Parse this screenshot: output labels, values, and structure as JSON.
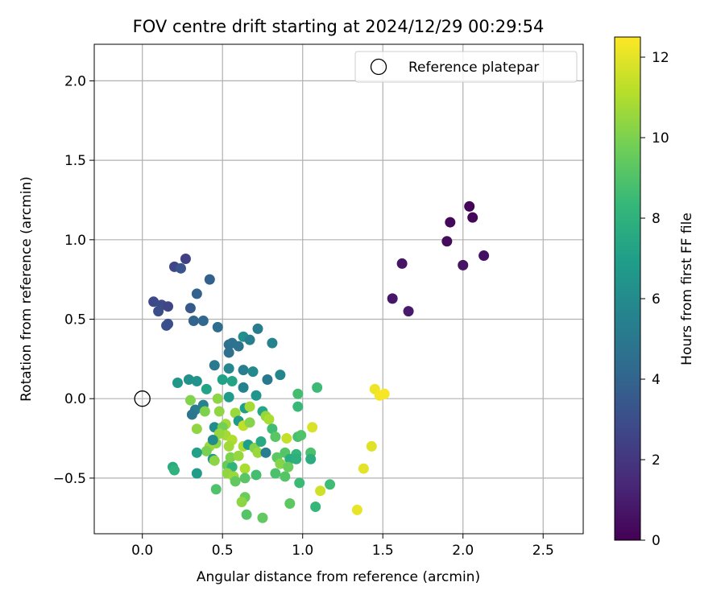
{
  "chart_data": {
    "type": "scatter",
    "title": "FOV centre drift starting at 2024/12/29 00:29:54",
    "xlabel": "Angular distance from reference (arcmin)",
    "ylabel": "Rotation from reference (arcmin)",
    "xlim": [
      -0.3,
      2.75
    ],
    "ylim": [
      -0.85,
      2.23
    ],
    "xticks": [
      0.0,
      0.5,
      1.0,
      1.5,
      2.0,
      2.5
    ],
    "xtick_labels": [
      "0.0",
      "0.5",
      "1.0",
      "1.5",
      "2.0",
      "2.5"
    ],
    "yticks": [
      -0.5,
      0.0,
      0.5,
      1.0,
      1.5,
      2.0
    ],
    "ytick_labels": [
      "−0.5",
      "0.0",
      "0.5",
      "1.0",
      "1.5",
      "2.0"
    ],
    "grid": true,
    "legend": {
      "position": "top-right",
      "entries": [
        "Reference platepar"
      ]
    },
    "reference_point": {
      "x": 0.0,
      "y": 0.0
    },
    "colorbar": {
      "label": "Hours from first FF file",
      "colormap": "viridis",
      "range": [
        0,
        12.5
      ],
      "ticks": [
        0,
        2,
        4,
        6,
        8,
        10,
        12
      ],
      "tick_labels": [
        "0",
        "2",
        "4",
        "6",
        "8",
        "10",
        "12"
      ],
      "colors": [
        "#440154",
        "#482878",
        "#3e4989",
        "#31688e",
        "#26828e",
        "#1f9e89",
        "#35b779",
        "#6ece58",
        "#b5de2b",
        "#fde725"
      ]
    },
    "points": [
      {
        "x": 2.04,
        "y": 1.21,
        "c": 0.1
      },
      {
        "x": 2.06,
        "y": 1.14,
        "c": 0.2
      },
      {
        "x": 1.92,
        "y": 1.11,
        "c": 0.3
      },
      {
        "x": 1.9,
        "y": 0.99,
        "c": 0.4
      },
      {
        "x": 2.13,
        "y": 0.9,
        "c": 0.5
      },
      {
        "x": 2.0,
        "y": 0.84,
        "c": 0.6
      },
      {
        "x": 1.62,
        "y": 0.85,
        "c": 0.7
      },
      {
        "x": 1.56,
        "y": 0.63,
        "c": 0.8
      },
      {
        "x": 1.66,
        "y": 0.55,
        "c": 0.9
      },
      {
        "x": 0.27,
        "y": 0.88,
        "c": 2.4
      },
      {
        "x": 0.2,
        "y": 0.83,
        "c": 2.7
      },
      {
        "x": 0.24,
        "y": 0.82,
        "c": 3.3
      },
      {
        "x": 0.07,
        "y": 0.61,
        "c": 2.8
      },
      {
        "x": 0.12,
        "y": 0.59,
        "c": 2.9
      },
      {
        "x": 0.16,
        "y": 0.58,
        "c": 2.6
      },
      {
        "x": 0.1,
        "y": 0.55,
        "c": 3.0
      },
      {
        "x": 0.15,
        "y": 0.46,
        "c": 3.2
      },
      {
        "x": 0.16,
        "y": 0.47,
        "c": 3.1
      },
      {
        "x": 0.3,
        "y": 0.57,
        "c": 3.4
      },
      {
        "x": 0.34,
        "y": 0.66,
        "c": 3.9
      },
      {
        "x": 0.42,
        "y": 0.75,
        "c": 3.8
      },
      {
        "x": 0.32,
        "y": 0.49,
        "c": 4.0
      },
      {
        "x": 0.38,
        "y": 0.49,
        "c": 4.1
      },
      {
        "x": 0.47,
        "y": 0.45,
        "c": 4.4
      },
      {
        "x": 0.54,
        "y": 0.34,
        "c": 4.5
      },
      {
        "x": 0.56,
        "y": 0.35,
        "c": 4.7
      },
      {
        "x": 0.54,
        "y": 0.29,
        "c": 4.6
      },
      {
        "x": 0.6,
        "y": 0.33,
        "c": 4.8
      },
      {
        "x": 0.63,
        "y": 0.39,
        "c": 6.2
      },
      {
        "x": 0.67,
        "y": 0.37,
        "c": 5.4
      },
      {
        "x": 0.72,
        "y": 0.44,
        "c": 5.2
      },
      {
        "x": 0.81,
        "y": 0.35,
        "c": 5.6
      },
      {
        "x": 0.45,
        "y": 0.21,
        "c": 5.1
      },
      {
        "x": 0.54,
        "y": 0.19,
        "c": 5.8
      },
      {
        "x": 0.63,
        "y": 0.18,
        "c": 5.3
      },
      {
        "x": 0.69,
        "y": 0.17,
        "c": 5.9
      },
      {
        "x": 0.86,
        "y": 0.15,
        "c": 5.7
      },
      {
        "x": 0.78,
        "y": 0.12,
        "c": 5.0
      },
      {
        "x": 0.5,
        "y": 0.12,
        "c": 7.1
      },
      {
        "x": 0.56,
        "y": 0.11,
        "c": 7.3
      },
      {
        "x": 0.22,
        "y": 0.1,
        "c": 6.6
      },
      {
        "x": 0.29,
        "y": 0.12,
        "c": 6.3
      },
      {
        "x": 0.34,
        "y": 0.11,
        "c": 6.4
      },
      {
        "x": 0.4,
        "y": 0.06,
        "c": 7.2
      },
      {
        "x": 0.63,
        "y": 0.07,
        "c": 5.5
      },
      {
        "x": 0.71,
        "y": 0.02,
        "c": 6.5
      },
      {
        "x": 0.54,
        "y": 0.01,
        "c": 6.8
      },
      {
        "x": 0.38,
        "y": -0.04,
        "c": 5.6
      },
      {
        "x": 0.33,
        "y": -0.07,
        "c": 5.2
      },
      {
        "x": 0.31,
        "y": -0.1,
        "c": 4.9
      },
      {
        "x": 0.47,
        "y": -0.0,
        "c": 10.3
      },
      {
        "x": 0.3,
        "y": -0.01,
        "c": 10.1
      },
      {
        "x": 0.48,
        "y": -0.08,
        "c": 10.4
      },
      {
        "x": 0.39,
        "y": -0.08,
        "c": 10.0
      },
      {
        "x": 0.58,
        "y": -0.09,
        "c": 10.6
      },
      {
        "x": 0.64,
        "y": -0.06,
        "c": 7.0
      },
      {
        "x": 0.67,
        "y": -0.05,
        "c": 10.8
      },
      {
        "x": 0.75,
        "y": -0.08,
        "c": 7.4
      },
      {
        "x": 0.77,
        "y": -0.11,
        "c": 10.5
      },
      {
        "x": 0.79,
        "y": -0.13,
        "c": 10.9
      },
      {
        "x": 0.6,
        "y": -0.14,
        "c": 6.7
      },
      {
        "x": 0.52,
        "y": -0.16,
        "c": 10.7
      },
      {
        "x": 0.45,
        "y": -0.18,
        "c": 6.1
      },
      {
        "x": 0.5,
        "y": -0.18,
        "c": 9.8
      },
      {
        "x": 0.63,
        "y": -0.17,
        "c": 11.3
      },
      {
        "x": 0.67,
        "y": -0.15,
        "c": 10.2
      },
      {
        "x": 0.81,
        "y": -0.19,
        "c": 8.6
      },
      {
        "x": 0.34,
        "y": -0.19,
        "c": 10.4
      },
      {
        "x": 0.52,
        "y": -0.23,
        "c": 10.8
      },
      {
        "x": 0.56,
        "y": -0.26,
        "c": 11.0
      },
      {
        "x": 0.48,
        "y": -0.22,
        "c": 10.5
      },
      {
        "x": 0.46,
        "y": -0.28,
        "c": 10.3
      },
      {
        "x": 0.42,
        "y": -0.3,
        "c": 10.6
      },
      {
        "x": 0.4,
        "y": -0.33,
        "c": 9.9
      },
      {
        "x": 0.44,
        "y": -0.26,
        "c": 6.0
      },
      {
        "x": 0.54,
        "y": -0.3,
        "c": 10.7
      },
      {
        "x": 0.63,
        "y": -0.3,
        "c": 10.9
      },
      {
        "x": 0.66,
        "y": -0.29,
        "c": 7.0
      },
      {
        "x": 0.7,
        "y": -0.31,
        "c": 10.1
      },
      {
        "x": 0.72,
        "y": -0.34,
        "c": 10.6
      },
      {
        "x": 0.74,
        "y": -0.27,
        "c": 7.5
      },
      {
        "x": 0.77,
        "y": -0.34,
        "c": 5.3
      },
      {
        "x": 0.83,
        "y": -0.24,
        "c": 9.2
      },
      {
        "x": 0.9,
        "y": -0.25,
        "c": 11.4
      },
      {
        "x": 0.89,
        "y": -0.34,
        "c": 9.1
      },
      {
        "x": 0.97,
        "y": -0.24,
        "c": 8.8
      },
      {
        "x": 0.99,
        "y": -0.23,
        "c": 9.0
      },
      {
        "x": 0.96,
        "y": -0.35,
        "c": 8.2
      },
      {
        "x": 0.92,
        "y": -0.38,
        "c": 7.7
      },
      {
        "x": 0.84,
        "y": -0.37,
        "c": 9.3
      },
      {
        "x": 0.86,
        "y": -0.41,
        "c": 10.2
      },
      {
        "x": 0.96,
        "y": -0.38,
        "c": 7.9
      },
      {
        "x": 1.05,
        "y": -0.34,
        "c": 8.9
      },
      {
        "x": 1.05,
        "y": -0.38,
        "c": 7.8
      },
      {
        "x": 1.06,
        "y": -0.18,
        "c": 11.8
      },
      {
        "x": 0.97,
        "y": 0.03,
        "c": 8.7
      },
      {
        "x": 0.97,
        "y": -0.05,
        "c": 8.4
      },
      {
        "x": 1.09,
        "y": 0.07,
        "c": 8.5
      },
      {
        "x": 0.34,
        "y": -0.34,
        "c": 7.1
      },
      {
        "x": 0.44,
        "y": -0.38,
        "c": 6.6
      },
      {
        "x": 0.45,
        "y": -0.39,
        "c": 10.3
      },
      {
        "x": 0.53,
        "y": -0.42,
        "c": 9.5
      },
      {
        "x": 0.56,
        "y": -0.43,
        "c": 8.1
      },
      {
        "x": 0.55,
        "y": -0.37,
        "c": 10.0
      },
      {
        "x": 0.6,
        "y": -0.36,
        "c": 10.5
      },
      {
        "x": 0.64,
        "y": -0.44,
        "c": 10.9
      },
      {
        "x": 0.19,
        "y": -0.43,
        "c": 7.6
      },
      {
        "x": 0.2,
        "y": -0.45,
        "c": 8.0
      },
      {
        "x": 0.34,
        "y": -0.47,
        "c": 6.9
      },
      {
        "x": 0.53,
        "y": -0.47,
        "c": 10.4
      },
      {
        "x": 0.57,
        "y": -0.49,
        "c": 10.6
      },
      {
        "x": 0.58,
        "y": -0.52,
        "c": 9.4
      },
      {
        "x": 0.64,
        "y": -0.5,
        "c": 9.2
      },
      {
        "x": 0.71,
        "y": -0.48,
        "c": 8.7
      },
      {
        "x": 0.83,
        "y": -0.47,
        "c": 8.9
      },
      {
        "x": 0.89,
        "y": -0.49,
        "c": 9.1
      },
      {
        "x": 0.91,
        "y": -0.43,
        "c": 9.6
      },
      {
        "x": 0.98,
        "y": -0.53,
        "c": 8.5
      },
      {
        "x": 0.46,
        "y": -0.57,
        "c": 9.0
      },
      {
        "x": 0.64,
        "y": -0.62,
        "c": 9.6
      },
      {
        "x": 0.62,
        "y": -0.65,
        "c": 10.3
      },
      {
        "x": 0.65,
        "y": -0.73,
        "c": 9.1
      },
      {
        "x": 0.75,
        "y": -0.75,
        "c": 9.4
      },
      {
        "x": 0.92,
        "y": -0.66,
        "c": 9.3
      },
      {
        "x": 1.08,
        "y": -0.68,
        "c": 8.3
      },
      {
        "x": 1.11,
        "y": -0.58,
        "c": 11.6
      },
      {
        "x": 1.17,
        "y": -0.54,
        "c": 8.6
      },
      {
        "x": 1.34,
        "y": -0.7,
        "c": 12.1
      },
      {
        "x": 1.38,
        "y": -0.44,
        "c": 12.0
      },
      {
        "x": 1.43,
        "y": -0.3,
        "c": 11.9
      },
      {
        "x": 1.45,
        "y": 0.06,
        "c": 12.2
      },
      {
        "x": 1.48,
        "y": 0.02,
        "c": 12.3
      },
      {
        "x": 1.51,
        "y": 0.03,
        "c": 12.4
      }
    ]
  }
}
